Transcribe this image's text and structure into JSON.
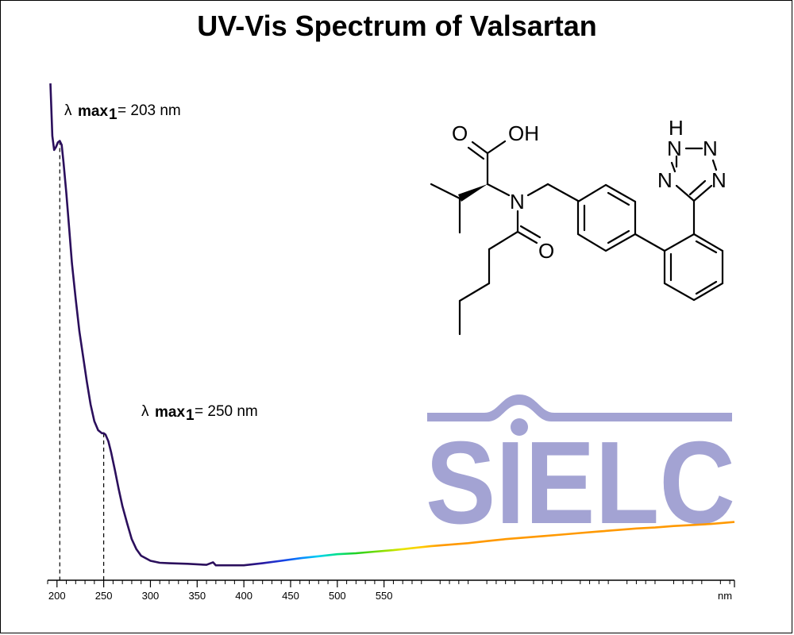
{
  "chart_data": {
    "type": "line",
    "title": "UV-Vis Spectrum of Valsartan",
    "xlabel": "",
    "ylabel": "",
    "x_unit": "nm",
    "xlim": [
      190,
      925
    ],
    "ylim": [
      0,
      1
    ],
    "x_ticks": [
      200,
      250,
      300,
      350,
      400,
      450,
      500,
      550
    ],
    "grid": false,
    "legend": "none",
    "series": [
      {
        "x": [
          193,
          195,
          197,
          199,
          201,
          203,
          205,
          207,
          210,
          213,
          216,
          220,
          224,
          228,
          232,
          236,
          240,
          244,
          248,
          250,
          252,
          255,
          258,
          262,
          266,
          270,
          275,
          280,
          285,
          290,
          300,
          310,
          320,
          340,
          360,
          367,
          370,
          380,
          400,
          420,
          440,
          460,
          480,
          500,
          520,
          540,
          560,
          580,
          600,
          620,
          640,
          660,
          680,
          700,
          720,
          740,
          760,
          780,
          800,
          820,
          840,
          860,
          880,
          900,
          925
        ],
        "y": [
          0.962,
          0.858,
          0.83,
          0.836,
          0.845,
          0.848,
          0.84,
          0.805,
          0.745,
          0.675,
          0.605,
          0.535,
          0.47,
          0.42,
          0.37,
          0.325,
          0.292,
          0.274,
          0.268,
          0.268,
          0.265,
          0.252,
          0.23,
          0.195,
          0.158,
          0.124,
          0.09,
          0.058,
          0.038,
          0.025,
          0.015,
          0.011,
          0.01,
          0.009,
          0.007,
          0.012,
          0.006,
          0.006,
          0.006,
          0.01,
          0.015,
          0.02,
          0.024,
          0.028,
          0.03,
          0.033,
          0.036,
          0.04,
          0.044,
          0.047,
          0.05,
          0.054,
          0.058,
          0.061,
          0.064,
          0.067,
          0.07,
          0.073,
          0.076,
          0.079,
          0.081,
          0.084,
          0.086,
          0.088,
          0.092
        ]
      }
    ],
    "annotations": [
      {
        "lambda": "λ",
        "sub": "max",
        "subsub": "1",
        "text": "= 203 nm",
        "x": 203
      },
      {
        "lambda": "λ",
        "sub": "max",
        "subsub": "1",
        "text": "= 250 nm",
        "x": 250
      }
    ]
  },
  "molecule": {
    "atoms": [
      "O",
      "OH",
      "N",
      "O",
      "H",
      "N",
      "N",
      "N",
      "N"
    ]
  },
  "logo": {
    "text": "SIELC",
    "color": "#a3a3d3"
  },
  "colors": {
    "curve_uv": "#2b0f5c"
  }
}
